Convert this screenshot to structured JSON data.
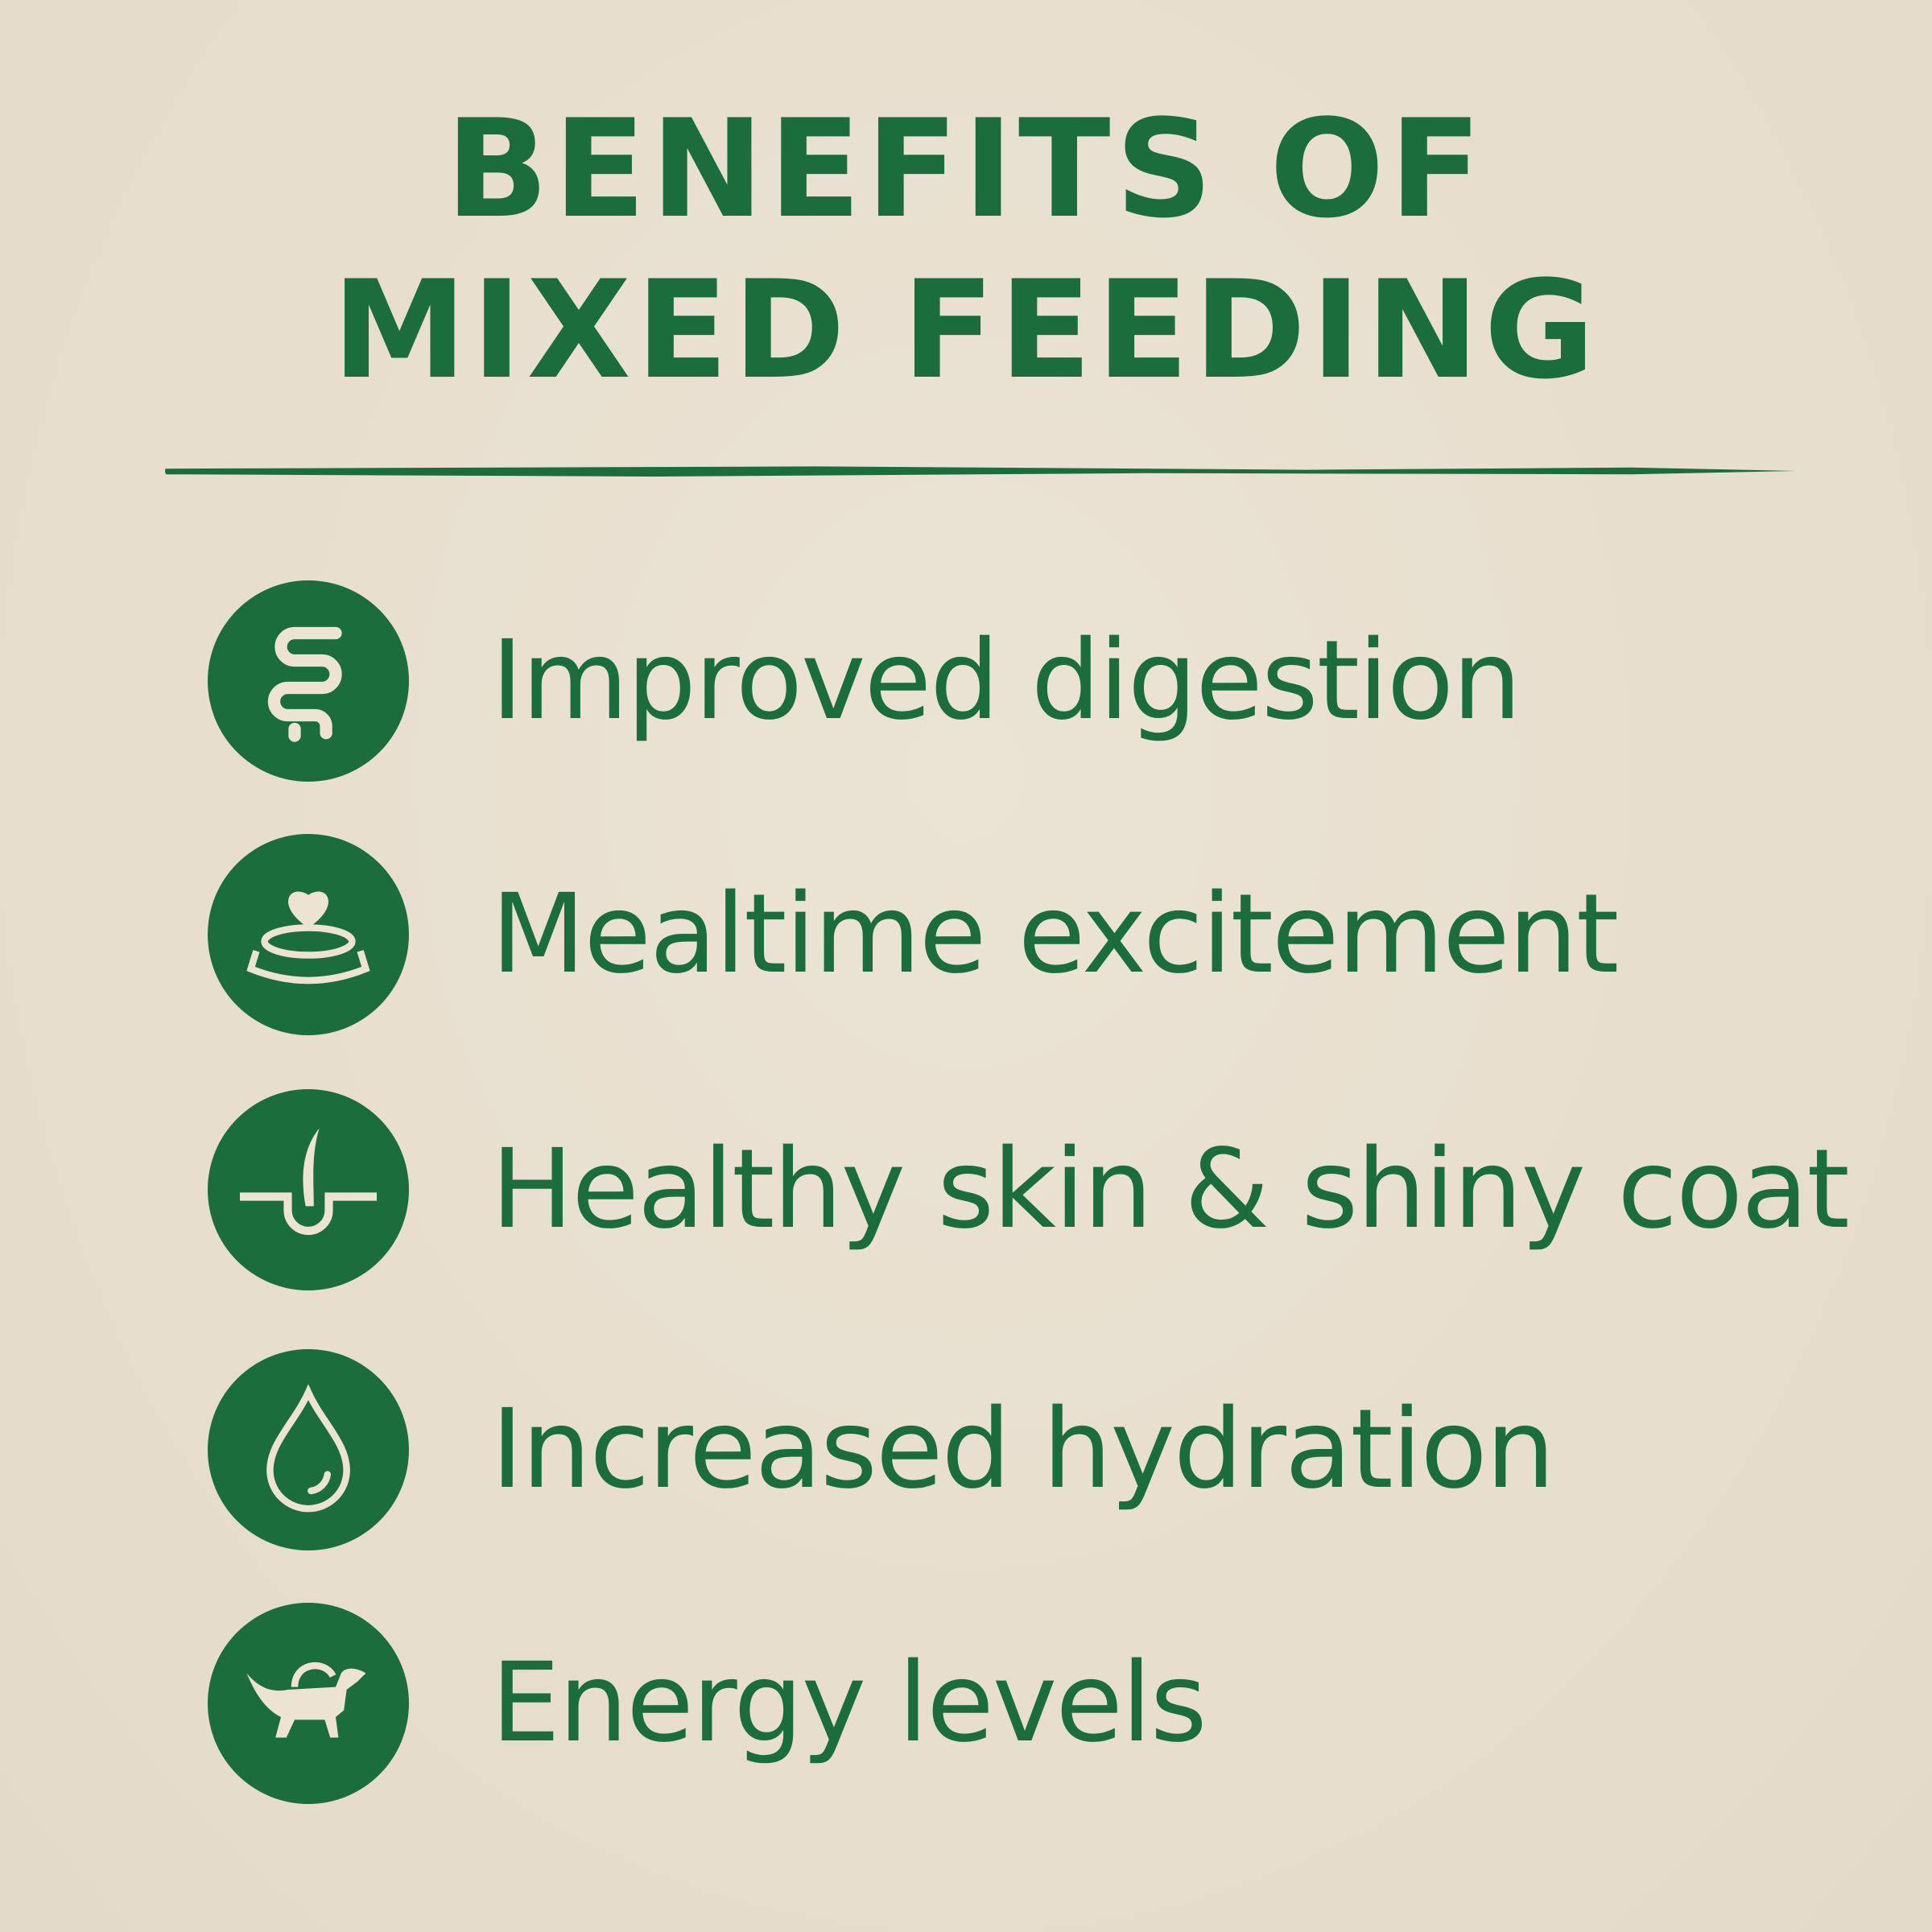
{
  "title": {
    "line1": "BENEFITS OF",
    "line2": "MIXED FEEDING"
  },
  "colors": {
    "accent": "#1b6e3b",
    "background": "#e7dece",
    "icon_fg": "#ece3d3"
  },
  "benefits": [
    {
      "label": "Improved digestion",
      "icon": "intestine-icon"
    },
    {
      "label": "Mealtime excitement",
      "icon": "bowl-heart-icon"
    },
    {
      "label": "Healthy skin & shiny coat",
      "icon": "hair-follicle-icon"
    },
    {
      "label": "Increased hydration",
      "icon": "water-drop-icon"
    },
    {
      "label": "Energy levels",
      "icon": "dog-energy-icon"
    }
  ]
}
